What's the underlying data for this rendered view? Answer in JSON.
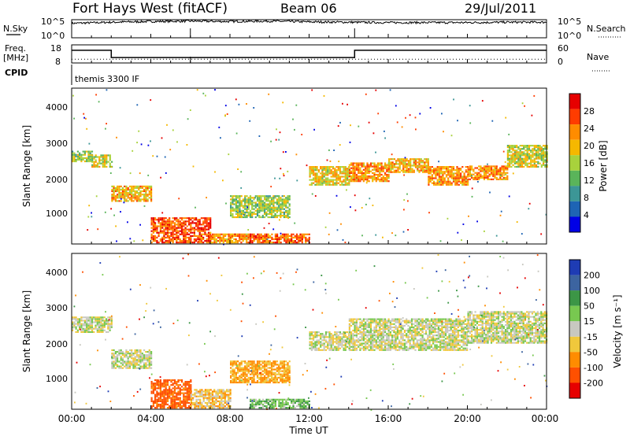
{
  "header": {
    "station": "Fort Hays West (fitACF)",
    "beam": "Beam 06",
    "date": "29/Jul/2011"
  },
  "noise_panel": {
    "left_label": "N.Sky",
    "left_ticks": [
      "10^5",
      "10^0"
    ],
    "right_ticks": [
      "10^5",
      "10^0"
    ],
    "right_label": "N.Search"
  },
  "freq_panel": {
    "left_label_1": "Freq.",
    "left_label_2": "[MHz]",
    "left_ticks": [
      "18",
      "8"
    ],
    "right_ticks": [
      "60",
      "0"
    ],
    "right_label": "Nave",
    "cpid_label": "CPID",
    "cpid_text": "themis 3300 IF"
  },
  "x_axis": {
    "label": "Time UT",
    "ticks": [
      "00:00",
      "04:00",
      "08:00",
      "12:00",
      "16:00",
      "20:00",
      "00:00"
    ]
  },
  "power_panel": {
    "ylabel": "Slant Range [km]",
    "yticks": [
      "1000",
      "2000",
      "3000",
      "4000"
    ],
    "colorbar_title": "Power [dB]",
    "colorbar_ticks": [
      "28",
      "24",
      "20",
      "16",
      "12",
      "8",
      "4"
    ],
    "colors": [
      "#e60000",
      "#ff3c00",
      "#ff8c00",
      "#f5b800",
      "#a8d23c",
      "#5ab45a",
      "#3c9696",
      "#1e64b4",
      "#0000e6"
    ]
  },
  "velocity_panel": {
    "ylabel": "Slant Range [km]",
    "yticks": [
      "1000",
      "2000",
      "3000",
      "4000"
    ],
    "colorbar_title": "Velocity [m s⁻¹]",
    "colorbar_ticks": [
      "200",
      "100",
      "50",
      "15",
      "-15",
      "-50",
      "-100",
      "-200"
    ],
    "colors": [
      "#1e3cb4",
      "#3c64a0",
      "#3c9646",
      "#78c850",
      "#c8c8c0",
      "#f0c83c",
      "#ff8c00",
      "#ff5000",
      "#e60000"
    ]
  },
  "chart_data": [
    {
      "type": "line",
      "title": "Fort Hays West (fitACF)  Beam 06  29/Jul/2011",
      "panel": "noise",
      "y_scale": "log",
      "ylim": [
        "10^0",
        "10^5"
      ],
      "series": [
        {
          "name": "N.Sky",
          "x_hours": [
            0,
            2,
            4,
            6,
            8,
            10,
            12,
            14,
            16,
            18,
            20,
            22,
            24
          ],
          "values_log10": [
            4.0,
            4.3,
            4.5,
            4.6,
            4.5,
            4.6,
            4.4,
            4.3,
            4.2,
            4.2,
            4.2,
            4.3,
            4.3
          ]
        }
      ]
    },
    {
      "type": "line",
      "panel": "frequency",
      "ylim": [
        8,
        18
      ],
      "series": [
        {
          "name": "Freq. [MHz]",
          "x_hours": [
            0,
            2,
            2,
            14.3,
            14.3,
            24
          ],
          "values": [
            15,
            15,
            11,
            11,
            15,
            15
          ]
        },
        {
          "name": "Nave",
          "x_hours": [
            0,
            24
          ],
          "values": [
            14,
            14
          ]
        }
      ]
    },
    {
      "type": "heatmap",
      "panel": "power",
      "xlabel": "Time UT",
      "ylabel": "Slant Range [km]",
      "xlim_hours": [
        0,
        24
      ],
      "ylim_km": [
        180,
        4500
      ],
      "zlabel": "Power [dB]",
      "zlim": [
        0,
        30
      ],
      "bands": [
        {
          "t": [
            0,
            1
          ],
          "range": [
            2450,
            2750
          ],
          "dB": 14
        },
        {
          "t": [
            1,
            2
          ],
          "range": [
            2300,
            2650
          ],
          "dB": 16
        },
        {
          "t": [
            2,
            4
          ],
          "range": [
            1350,
            1800
          ],
          "dB": 20
        },
        {
          "t": [
            4,
            7
          ],
          "range": [
            200,
            900
          ],
          "dB": 26
        },
        {
          "t": [
            7,
            9
          ],
          "range": [
            200,
            450
          ],
          "dB": 22
        },
        {
          "t": [
            9,
            12
          ],
          "range": [
            200,
            450
          ],
          "dB": 24
        },
        {
          "t": [
            8,
            11
          ],
          "range": [
            900,
            1500
          ],
          "dB": 14
        },
        {
          "t": [
            12,
            14
          ],
          "range": [
            1800,
            2300
          ],
          "dB": 18
        },
        {
          "t": [
            14,
            16
          ],
          "range": [
            1900,
            2400
          ],
          "dB": 22
        },
        {
          "t": [
            16,
            18
          ],
          "range": [
            2150,
            2550
          ],
          "dB": 20
        },
        {
          "t": [
            18,
            20
          ],
          "range": [
            1800,
            2300
          ],
          "dB": 22
        },
        {
          "t": [
            20,
            22
          ],
          "range": [
            1950,
            2350
          ],
          "dB": 22
        },
        {
          "t": [
            22,
            24
          ],
          "range": [
            2300,
            2900
          ],
          "dB": 16
        }
      ]
    },
    {
      "type": "heatmap",
      "panel": "velocity",
      "xlabel": "Time UT",
      "ylabel": "Slant Range [km]",
      "xlim_hours": [
        0,
        24
      ],
      "ylim_km": [
        180,
        4500
      ],
      "zlabel": "Velocity [m s⁻¹]",
      "zlim": [
        -200,
        200
      ],
      "bands": [
        {
          "t": [
            0,
            2
          ],
          "range": [
            2300,
            2750
          ],
          "velocity": 0
        },
        {
          "t": [
            2,
            4
          ],
          "range": [
            1300,
            1800
          ],
          "velocity": 0
        },
        {
          "t": [
            4,
            6
          ],
          "range": [
            200,
            1000
          ],
          "velocity": -120
        },
        {
          "t": [
            6,
            8
          ],
          "range": [
            200,
            700
          ],
          "velocity": -30
        },
        {
          "t": [
            8,
            11
          ],
          "range": [
            900,
            1500
          ],
          "velocity": -60
        },
        {
          "t": [
            9,
            12
          ],
          "range": [
            200,
            450
          ],
          "velocity": 40
        },
        {
          "t": [
            12,
            14
          ],
          "range": [
            1800,
            2300
          ],
          "velocity": 0
        },
        {
          "t": [
            14,
            20
          ],
          "range": [
            1800,
            2700
          ],
          "velocity": 0
        },
        {
          "t": [
            20,
            24
          ],
          "range": [
            2000,
            2900
          ],
          "velocity": 0
        }
      ]
    }
  ]
}
